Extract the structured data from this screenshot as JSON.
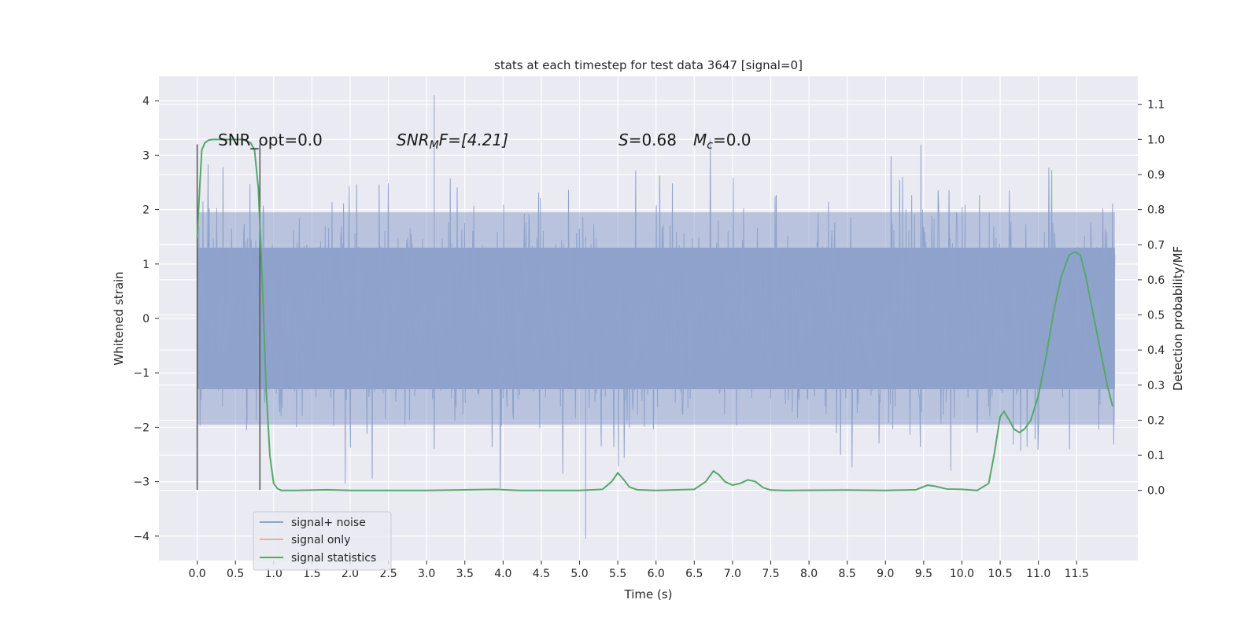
{
  "chart_data": {
    "type": "line",
    "title": "stats at each timestep for test data 3647 [signal=0]",
    "xlabel": "Time (s)",
    "ylabel_left": "Whitened strain",
    "ylabel_right": "Detection probability/MF",
    "xlim": [
      -0.5,
      12.3
    ],
    "ylim_left": [
      -4.45,
      4.45
    ],
    "ylim_right": [
      -0.2,
      1.18
    ],
    "xticks": [
      0.0,
      0.5,
      1.0,
      1.5,
      2.0,
      2.5,
      3.0,
      3.5,
      4.0,
      4.5,
      5.0,
      5.5,
      6.0,
      6.5,
      7.0,
      7.5,
      8.0,
      8.5,
      9.0,
      9.5,
      10.0,
      10.5,
      11.0,
      11.5
    ],
    "xtick_labels": [
      "0.0",
      "0.5",
      "1.0",
      "1.5",
      "2.0",
      "2.5",
      "3.0",
      "3.5",
      "4.0",
      "4.5",
      "5.0",
      "5.5",
      "6.0",
      "6.5",
      "7.0",
      "7.5",
      "8.0",
      "8.5",
      "9.0",
      "9.5",
      "10.0",
      "10.5",
      "11.0",
      "11.5"
    ],
    "yticks_left": [
      4,
      3,
      2,
      1,
      0,
      -1,
      -2,
      -3,
      -4
    ],
    "ytick_labels_left": [
      "4",
      "3",
      "2",
      "1",
      "0",
      "−1",
      "−2",
      "−3",
      "−4"
    ],
    "yticks_right": [
      1.1,
      1.0,
      0.9,
      0.8,
      0.7,
      0.6,
      0.5,
      0.4,
      0.3,
      0.2,
      0.1,
      0.0
    ],
    "ytick_labels_right": [
      "1.1",
      "1.0",
      "0.9",
      "0.8",
      "0.7",
      "0.6",
      "0.5",
      "0.4",
      "0.3",
      "0.2",
      "0.1",
      "0.0"
    ],
    "grid": true,
    "legend": {
      "placement": "lower-left",
      "entries": [
        {
          "label": "signal+ noise",
          "color": "#8fa3cc"
        },
        {
          "label": "signal only",
          "color": "#e5ae98"
        },
        {
          "label": "signal statistics",
          "color": "#55a868"
        }
      ]
    },
    "annotations": {
      "snr_opt": "SNR_opt=0.0",
      "snr_mf_main": "SNR",
      "snr_mf_sub": "M",
      "snr_mf_rest": "F=[4.21]",
      "s_main": "S",
      "s_rest": "=0.68",
      "mc_main": "M",
      "mc_sub": "c",
      "mc_rest": "=0.0"
    },
    "marker_lines": {
      "x": [
        0.0,
        0.82
      ],
      "y_range": [
        -3.15,
        3.2
      ],
      "color": "#555555"
    },
    "series": [
      {
        "name": "signal+ noise",
        "axis": "left",
        "color": "#8fa3cc",
        "x_range": [
          0.0,
          12.0
        ],
        "samples": 1600,
        "typical_amplitude": 1.3,
        "envelope_amplitude": 1.95,
        "y_extremes": [
          -4.05,
          4.1
        ]
      },
      {
        "name": "signal statistics",
        "axis": "right",
        "color": "#55a868",
        "x": [
          0.0,
          0.03,
          0.06,
          0.1,
          0.15,
          0.2,
          0.3,
          0.4,
          0.5,
          0.6,
          0.7,
          0.75,
          0.8,
          0.85,
          0.9,
          0.95,
          1.0,
          1.05,
          1.1,
          1.3,
          1.7,
          2.0,
          3.0,
          3.9,
          4.2,
          5.0,
          5.3,
          5.42,
          5.5,
          5.58,
          5.65,
          5.75,
          6.0,
          6.5,
          6.65,
          6.75,
          6.82,
          6.9,
          7.0,
          7.1,
          7.2,
          7.3,
          7.4,
          7.5,
          7.7,
          8.5,
          9.0,
          9.4,
          9.55,
          9.65,
          9.8,
          10.0,
          10.2,
          10.35,
          10.42,
          10.5,
          10.55,
          10.62,
          10.68,
          10.75,
          10.82,
          10.9,
          11.0,
          11.1,
          11.2,
          11.3,
          11.4,
          11.48,
          11.55,
          11.62,
          11.7,
          11.8,
          11.9,
          11.97
        ],
        "y": [
          0.72,
          0.85,
          0.97,
          0.99,
          0.998,
          1.0,
          1.0,
          1.0,
          1.0,
          1.0,
          0.99,
          0.97,
          0.86,
          0.6,
          0.3,
          0.1,
          0.02,
          0.005,
          0.0,
          0.0,
          0.002,
          0.0,
          0.0,
          0.003,
          0.0,
          0.0,
          0.003,
          0.025,
          0.05,
          0.03,
          0.01,
          0.002,
          0.0,
          0.003,
          0.025,
          0.055,
          0.045,
          0.025,
          0.015,
          0.02,
          0.03,
          0.025,
          0.008,
          0.001,
          0.0,
          0.001,
          0.0,
          0.002,
          0.015,
          0.012,
          0.004,
          0.003,
          0.0,
          0.02,
          0.1,
          0.21,
          0.225,
          0.2,
          0.175,
          0.165,
          0.175,
          0.2,
          0.27,
          0.38,
          0.51,
          0.61,
          0.67,
          0.68,
          0.67,
          0.61,
          0.52,
          0.41,
          0.3,
          0.24
        ]
      }
    ]
  }
}
